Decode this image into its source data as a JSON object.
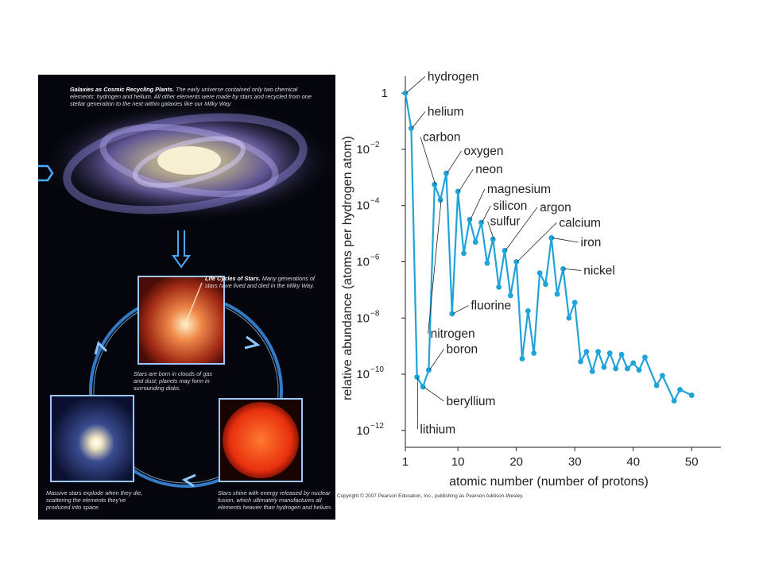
{
  "panel": {
    "galaxy_title": "Galaxies as Cosmic Recycling Plants.",
    "galaxy_text": "The early universe contained only two chemical elements: hydrogen and helium. All other elements were made by stars and recycled from one stellar generation to the next within galaxies like our Milky Way.",
    "life_title": "Life Cycles of Stars.",
    "life_text": "Many generations of stars have lived and died in the Milky Way.",
    "born_text": "Stars are born in clouds of gas and dust; planets may form in surrounding disks.",
    "explode_text": "Massive stars explode when they die, scattering the elements they've produced into space.",
    "shine_text": "Stars shine with energy released by nuclear fusion, which ultimately manufactures all elements heavier than hydrogen and helium."
  },
  "copyright": "Copyright © 2007 Pearson Education, Inc., publishing as Pearson Addison-Wesley.",
  "chart_data": {
    "type": "line",
    "xlabel": "atomic number (number of protons)",
    "ylabel": "relative abundance (atoms per hydrogen atom)",
    "log_y": true,
    "xlim": [
      1,
      55
    ],
    "ylim": [
      -12.6,
      0.6
    ],
    "x_ticks": [
      1,
      10,
      20,
      30,
      40,
      50
    ],
    "y_ticks": [
      {
        "exp": 0,
        "base": "1",
        "sup": ""
      },
      {
        "exp": -2,
        "base": "10",
        "sup": "−2"
      },
      {
        "exp": -4,
        "base": "10",
        "sup": "−4"
      },
      {
        "exp": -6,
        "base": "10",
        "sup": "−6"
      },
      {
        "exp": -8,
        "base": "10",
        "sup": "−8"
      },
      {
        "exp": -10,
        "base": "10",
        "sup": "−10"
      },
      {
        "exp": -12,
        "base": "10",
        "sup": "−12"
      }
    ],
    "series_color": "#1fa3d8",
    "points": [
      [
        1,
        0.0
      ],
      [
        2,
        -1.25
      ],
      [
        3,
        -10.1
      ],
      [
        4,
        -10.45
      ],
      [
        5,
        -9.85
      ],
      [
        6,
        -3.25
      ],
      [
        7,
        -3.8
      ],
      [
        8,
        -2.85
      ],
      [
        9,
        -7.85
      ],
      [
        10,
        -3.5
      ],
      [
        11,
        -5.7
      ],
      [
        12,
        -4.5
      ],
      [
        13,
        -5.3
      ],
      [
        14,
        -4.6
      ],
      [
        15,
        -6.05
      ],
      [
        16,
        -5.2
      ],
      [
        17,
        -6.9
      ],
      [
        18,
        -5.6
      ],
      [
        19,
        -7.2
      ],
      [
        20,
        -6.0
      ],
      [
        21,
        -9.45
      ],
      [
        22,
        -7.75
      ],
      [
        23,
        -9.25
      ],
      [
        24,
        -6.4
      ],
      [
        25,
        -6.8
      ],
      [
        26,
        -5.15
      ],
      [
        27,
        -7.15
      ],
      [
        28,
        -6.25
      ],
      [
        29,
        -8.0
      ],
      [
        30,
        -7.45
      ],
      [
        31,
        -9.55
      ],
      [
        32,
        -9.2
      ],
      [
        33,
        -9.9
      ],
      [
        34,
        -9.2
      ],
      [
        35,
        -9.75
      ],
      [
        36,
        -9.25
      ],
      [
        37,
        -9.8
      ],
      [
        38,
        -9.3
      ],
      [
        39,
        -9.8
      ],
      [
        40,
        -9.6
      ],
      [
        41,
        -9.85
      ],
      [
        42,
        -9.4
      ],
      [
        44,
        -10.4
      ],
      [
        45,
        -10.05
      ],
      [
        47,
        -10.95
      ],
      [
        48,
        -10.55
      ],
      [
        50,
        -10.75
      ]
    ],
    "labels": [
      {
        "text": "hydrogen",
        "x": 1,
        "y": 0.0,
        "tx": 4.8,
        "ty": 0.45
      },
      {
        "text": "helium",
        "x": 2,
        "y": -1.25,
        "tx": 4.8,
        "ty": -0.8
      },
      {
        "text": "carbon",
        "x": 6,
        "y": -3.25,
        "tx": 4.0,
        "ty": -1.7
      },
      {
        "text": "oxygen",
        "x": 8,
        "y": -2.85,
        "tx": 11.0,
        "ty": -2.2
      },
      {
        "text": "neon",
        "x": 10,
        "y": -3.5,
        "tx": 13.0,
        "ty": -2.85
      },
      {
        "text": "magnesium",
        "x": 12,
        "y": -4.5,
        "tx": 15.0,
        "ty": -3.55
      },
      {
        "text": "silicon",
        "x": 14,
        "y": -4.6,
        "tx": 16.0,
        "ty": -4.15
      },
      {
        "text": "sulfur",
        "x": 16,
        "y": -5.2,
        "tx": 15.5,
        "ty": -4.7
      },
      {
        "text": "argon",
        "x": 18,
        "y": -5.6,
        "tx": 24.0,
        "ty": -4.2
      },
      {
        "text": "calcium",
        "x": 20,
        "y": -6.0,
        "tx": 27.3,
        "ty": -4.75
      },
      {
        "text": "iron",
        "x": 26,
        "y": -5.15,
        "tx": 31.0,
        "ty": -5.45
      },
      {
        "text": "nickel",
        "x": 28,
        "y": -6.25,
        "tx": 31.5,
        "ty": -6.45
      },
      {
        "text": "fluorine",
        "x": 9,
        "y": -7.85,
        "tx": 12.2,
        "ty": -7.7
      },
      {
        "text": "nitrogen",
        "x": 7,
        "y": -3.8,
        "tx": 5.3,
        "ty": -8.7
      },
      {
        "text": "boron",
        "x": 5,
        "y": -9.85,
        "tx": 8.0,
        "ty": -9.25
      },
      {
        "text": "beryllium",
        "x": 4,
        "y": -10.45,
        "tx": 8.0,
        "ty": -11.1
      },
      {
        "text": "lithium",
        "x": 3,
        "y": -10.1,
        "tx": 3.5,
        "ty": -12.1
      }
    ]
  }
}
